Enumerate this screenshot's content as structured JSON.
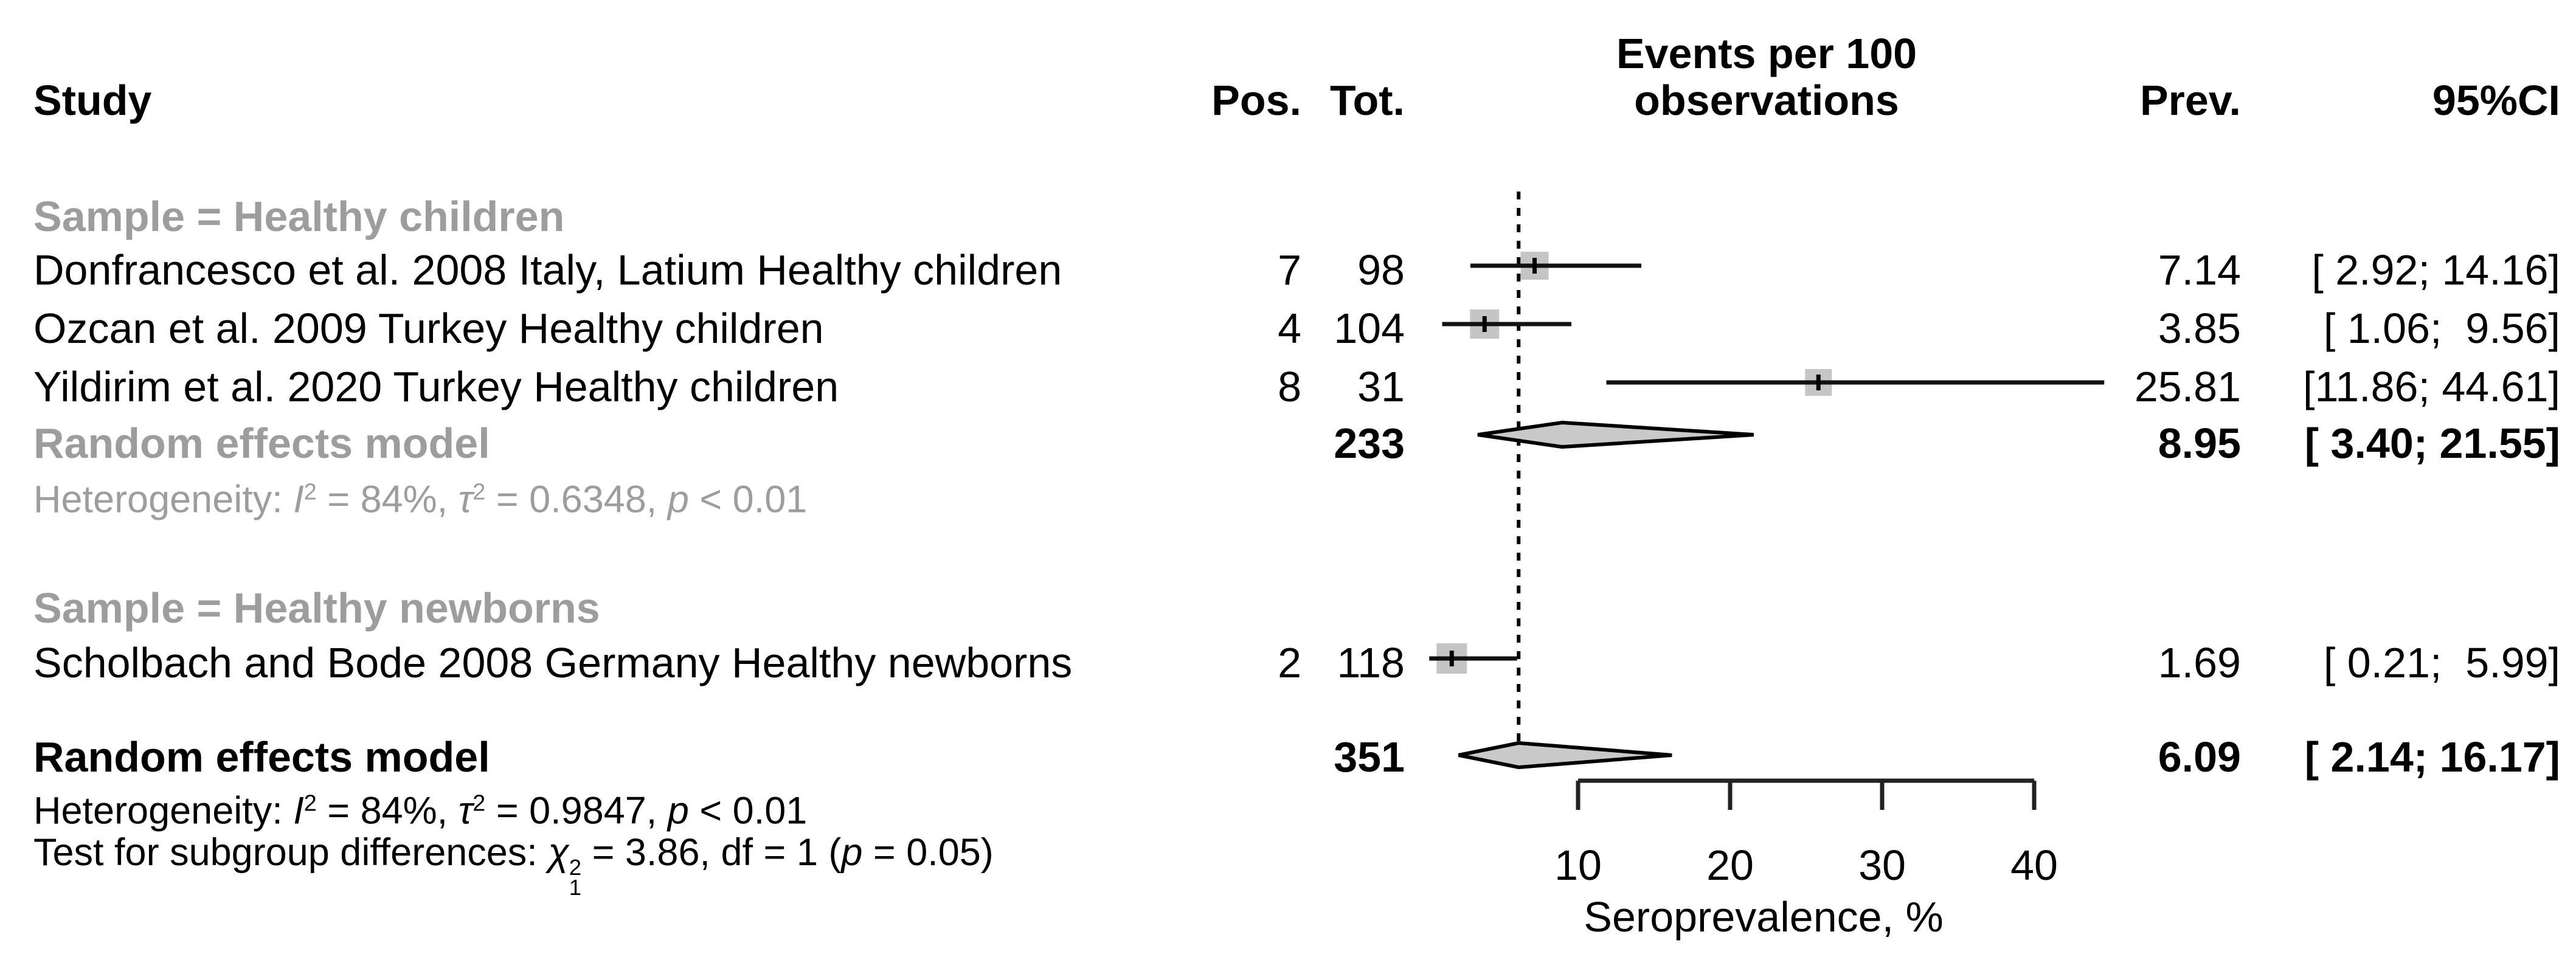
{
  "header": {
    "col_study": "Study",
    "col_pos": "Pos.",
    "col_tot": "Tot.",
    "col_events_line1": "Events per 100",
    "col_events_line2": "observations",
    "col_prev": "Prev.",
    "col_ci": "95%CI"
  },
  "chart_data": {
    "type": "forest",
    "xlabel": "Seroprevalence, %",
    "x_ticks": [
      10,
      20,
      30,
      40
    ],
    "axis_range": [
      10,
      40
    ],
    "reference_line_value": 6.09,
    "legend": "none",
    "grid": false,
    "groups": [
      {
        "header": "Sample = Healthy children",
        "studies": [
          {
            "study": "Donfrancesco et al. 2008 Italy, Latium Healthy children",
            "pos": "7",
            "tot": "98",
            "prev": 7.14,
            "ci_low": 2.92,
            "ci_high": 14.16,
            "prev_text": "7.14",
            "ci_text": "[ 2.92; 14.16]"
          },
          {
            "study": "Ozcan et al. 2009 Turkey Healthy children",
            "pos": "4",
            "tot": "104",
            "prev": 3.85,
            "ci_low": 1.06,
            "ci_high": 9.56,
            "prev_text": "3.85",
            "ci_text": "[ 1.06;  9.56]"
          },
          {
            "study": "Yildirim et al. 2020 Turkey Healthy children",
            "pos": "8",
            "tot": "31",
            "prev": 25.81,
            "ci_low": 11.86,
            "ci_high": 44.61,
            "prev_text": "25.81",
            "ci_text": "[11.86; 44.61]"
          }
        ],
        "summary": {
          "label": "Random effects model",
          "tot": "233",
          "prev": 8.95,
          "ci_low": 3.4,
          "ci_high": 21.55,
          "prev_text": "8.95",
          "ci_text": "[ 3.40; 21.55]"
        },
        "heterogeneity_parts": [
          {
            "t": "Heterogeneity: "
          },
          {
            "t": "I",
            "i": true
          },
          {
            "t": "2",
            "sup": true
          },
          {
            "t": " = 84%, "
          },
          {
            "t": "τ",
            "i": true
          },
          {
            "t": "2",
            "sup": true
          },
          {
            "t": " = 0.6348, "
          },
          {
            "t": "p",
            "i": true
          },
          {
            "t": " < 0.01"
          }
        ]
      },
      {
        "header": "Sample = Healthy newborns",
        "studies": [
          {
            "study": "Scholbach and Bode 2008 Germany Healthy newborns",
            "pos": "2",
            "tot": "118",
            "prev": 1.69,
            "ci_low": 0.21,
            "ci_high": 5.99,
            "prev_text": "1.69",
            "ci_text": "[ 0.21;  5.99]"
          }
        ]
      }
    ],
    "overall": {
      "label": "Random effects model",
      "tot": "351",
      "prev": 6.09,
      "ci_low": 2.14,
      "ci_high": 16.17,
      "prev_text": "6.09",
      "ci_text": "[ 2.14; 16.17]",
      "heterogeneity_parts": [
        {
          "t": "Heterogeneity: "
        },
        {
          "t": "I",
          "i": true
        },
        {
          "t": "2",
          "sup": true
        },
        {
          "t": " = 84%, "
        },
        {
          "t": "τ",
          "i": true
        },
        {
          "t": "2",
          "sup": true
        },
        {
          "t": " = 0.9847, "
        },
        {
          "t": "p",
          "i": true
        },
        {
          "t": " < 0.01"
        }
      ],
      "subgroup_test_parts": [
        {
          "t": "Test for subgroup differences: "
        },
        {
          "t": "χ",
          "i": true
        },
        {
          "stack": true,
          "sup": "2",
          "sub": "1"
        },
        {
          "t": " = 3.86, df = 1 ("
        },
        {
          "t": "p",
          "i": true
        },
        {
          "t": " = 0.05)"
        }
      ]
    }
  },
  "colors": {
    "gray_text": "#9d9d9d",
    "square_fill": "#c5c5c5",
    "diamond_fill": "#c9c9c9",
    "line_black": "#111111"
  }
}
